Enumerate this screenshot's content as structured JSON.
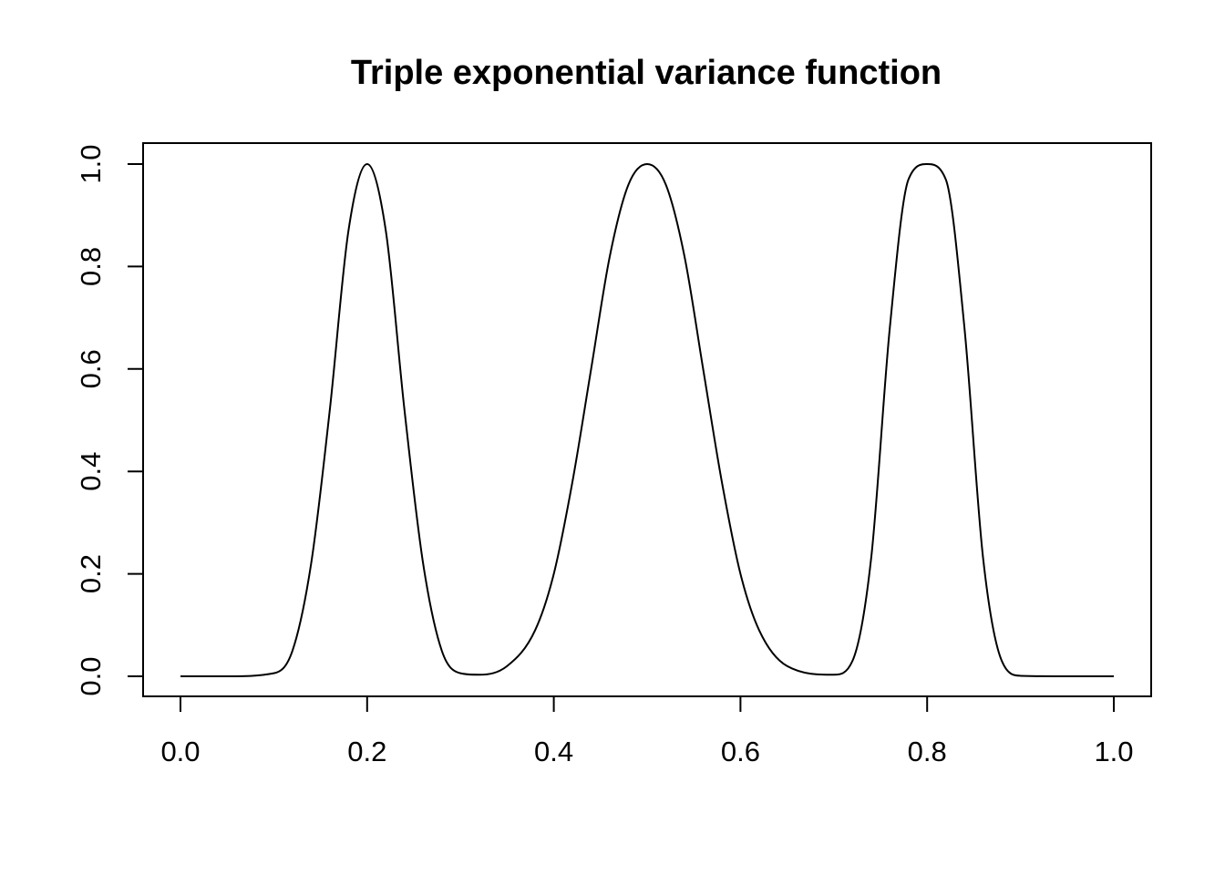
{
  "chart_data": {
    "type": "line",
    "title": "Triple exponential variance function",
    "xlabel": "",
    "ylabel": "",
    "xlim": [
      0.0,
      1.0
    ],
    "ylim": [
      0.0,
      1.0
    ],
    "x_ticks": [
      "0.0",
      "0.2",
      "0.4",
      "0.6",
      "0.8",
      "1.0"
    ],
    "y_ticks": [
      "0.0",
      "0.2",
      "0.4",
      "0.6",
      "0.8",
      "1.0"
    ],
    "grid": false,
    "legend": "none",
    "line_color": "#000000",
    "series": [
      {
        "x": [
          0.0,
          0.05,
          0.1,
          0.12,
          0.14,
          0.16,
          0.18,
          0.2,
          0.22,
          0.24,
          0.26,
          0.28,
          0.3,
          0.32,
          0.35,
          0.38,
          0.4,
          0.42,
          0.44,
          0.46,
          0.48,
          0.5,
          0.52,
          0.54,
          0.56,
          0.58,
          0.6,
          0.62,
          0.65,
          0.7,
          0.72,
          0.74,
          0.76,
          0.78,
          0.8,
          0.82,
          0.84,
          0.86,
          0.88,
          0.9,
          0.95,
          1.0
        ],
        "y": [
          0.0,
          0.0,
          0.006,
          0.05,
          0.22,
          0.52,
          0.87,
          1.0,
          0.87,
          0.52,
          0.22,
          0.05,
          0.006,
          0.003,
          0.02,
          0.09,
          0.2,
          0.38,
          0.6,
          0.82,
          0.96,
          1.0,
          0.96,
          0.82,
          0.6,
          0.38,
          0.2,
          0.09,
          0.02,
          0.003,
          0.03,
          0.23,
          0.68,
          0.97,
          1.0,
          0.97,
          0.68,
          0.23,
          0.03,
          0.001,
          0.0,
          0.0
        ]
      }
    ]
  }
}
